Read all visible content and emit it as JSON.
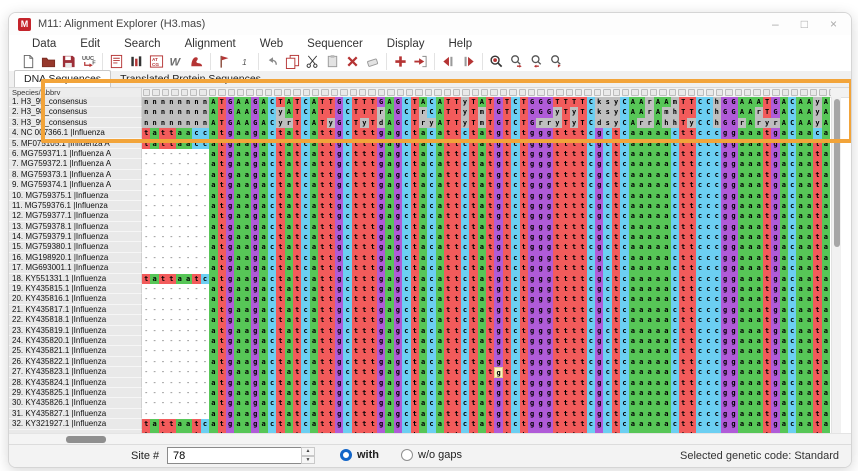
{
  "window": {
    "title": "M11: Alignment Explorer (H3.mas)",
    "logo_letter": "M",
    "controls": {
      "minimize": "–",
      "maximize": "□",
      "close": "×"
    }
  },
  "menu": {
    "items": [
      "Data",
      "Edit",
      "Search",
      "Alignment",
      "Web",
      "Sequencer",
      "Display",
      "Help"
    ]
  },
  "toolbar": {
    "groups": [
      [
        "new-file",
        "open-folder",
        "save-file",
        "translate-uuc"
      ],
      [
        "find-motif",
        "trace-data",
        "toggle-atcg",
        "clustalw-align",
        "muscle-align"
      ],
      [
        "mark-site-flag",
        "site-number"
      ],
      [
        "undo",
        "copy",
        "cut",
        "paste",
        "delete",
        "eraser"
      ],
      [
        "add-sequence",
        "insert-sequence"
      ],
      [
        "move-left",
        "move-right"
      ],
      [
        "search-zoom",
        "search-next",
        "search-previous",
        "search-mark"
      ]
    ]
  },
  "tabs": [
    {
      "label": "DNA Sequences",
      "active": true
    },
    {
      "label": "Translated Protein Sequences",
      "active": false
    }
  ],
  "alignment": {
    "header_label": "Species/Abbrv",
    "columns": 82,
    "nuc_colors": {
      "a": "#57C657",
      "t": "#F25B5B",
      "g": "#B05BD8",
      "c": "#6CCFF2",
      "ambiguous": "#BFBFBF"
    },
    "cursor": {
      "row": 27,
      "col": 43
    },
    "rows": [
      {
        "label": "1. H3_95_consensus",
        "seq": "nnnnnnnnATGAAGACTATCATTGCTTTGAGCTACATTyTATGTCTGGGTTTTCksyCAArAAmTTCChGGAAATGACAAyA"
      },
      {
        "label": "2. H3_98_consensus",
        "seq": "nnnnnnnnATGAAGACyATCATTGCTTTrAGCTrCATTyTmTGTCTGGGyTyTCksyCAArAmhTTCChGGAArTGACAAyA"
      },
      {
        "label": "3. H3_99_consensus",
        "seq": "nnnnnnnnATGAAGACyrTCATyGCTyTdAGCTryATTyTmTGTCTGrryTyTCdsyCArrAhhTyCChGGrAryrACAAyA"
      },
      {
        "label": "4. NC 007366.1 |Influenza",
        "seq": "tattaaccatgaagactatcattgctttgagctacattctatgtctgggttttcgctcaaaaacttcccggaaatgacaaca"
      },
      {
        "label": "5. MF075105.1 |Influenza A",
        "seq": "tattaaccatgaagactatcattgctttgagctacattctatgtctgggttttcgctcaaaaacttcccggaaatgacaata"
      },
      {
        "label": "6. MG759371.1 |Influenza A",
        "seq": "--------atgaagactatcattgctttgagctacattctatgtctgggttttcgctcaaaaacttcccggaaatgacaata"
      },
      {
        "label": "7. MG759372.1 |Influenza A",
        "seq": "--------atgaagactatcattgctttgagctacattctatgtctgggttttcgctcaaaaacttcccggaaatgacaata"
      },
      {
        "label": "8. MG759373.1 |Influenza A",
        "seq": "--------atgaagactatcattgctttgagctacattctatgtctgggttttcgctcaaaaacttcccggaaatgacaata"
      },
      {
        "label": "9. MG759374.1 |Influenza A",
        "seq": "--------atgaagactatcattgctttgagctacattctatgtctgggttttcgctcaaaaacttcccggaaatgacaata"
      },
      {
        "label": "10. MG759375.1 |Influenza",
        "seq": "--------atgaagactatcattgctttgagctacattctatgtctgggttttcgctcaaaaacttcccggaaatgacaata"
      },
      {
        "label": "11. MG759376.1 |Influenza",
        "seq": "--------atgaagactatcattgctttgagctacattctatgtctgggttttcgctcaaaaacttcccggaaatgacaata"
      },
      {
        "label": "12. MG759377.1 |Influenza",
        "seq": "--------atgaagactatcattgctttgagctacattctatgtctgggttttcgctcaaaaacttcccggaaatgacaata"
      },
      {
        "label": "13. MG759378.1 |Influenza",
        "seq": "--------atgaagactatcattgctttgagctacattctatgtctgggttttcgctcaaaaacttcccggaaatgacaata"
      },
      {
        "label": "14. MG759379.1 |Influenza",
        "seq": "--------atgaagactatcattgctttgagctacattctatgtctgggttttcgctcaaaaacttcccggaaatgacaata"
      },
      {
        "label": "15. MG759380.1 |Influenza",
        "seq": "--------atgaagactatcattgctttgagctacattctatgtctgggttttcgctcaaaaacttcccggaaatgacaata"
      },
      {
        "label": "16. MG198920.1 |Influenza",
        "seq": "--------atgaagactatcattgctttgagctacattctatgtctgggttttcgctcaaaaacttcccggaaatgacaata"
      },
      {
        "label": "17. MG693001.1 |Influenza",
        "seq": "--------atgaagactatcattgctttgagctacattctatgtctgggttttcgctcaaaaacttcccggaaatgacaata"
      },
      {
        "label": "18. KY551331.1 |Influenza",
        "seq": "tattaatcatgaagactatcattgctttgagctacattctatgtctgggttttcgctcaaaaacttcccggaaatgacaata"
      },
      {
        "label": "19. KY435815.1 |Influenza",
        "seq": "--------atgaagactatcattgctttgagctacattctatgtctgggttttcgctcaaaaacttcccggaaatgacaata"
      },
      {
        "label": "20. KY435816.1 |Influenza",
        "seq": "--------atgaagactatcattgctttgagctacattctatgtctgggttttcgctcaaaaacttcccggaaatgacaata"
      },
      {
        "label": "21. KY435817.1 |Influenza",
        "seq": "--------atgaagactatcattgctttgagctacattctatgtctgggttttcgctcaaaaacttcccggaaatgacaata"
      },
      {
        "label": "22. KY435818.1 |Influenza",
        "seq": "--------atgaagactatcattgctttgagctacattctatgtctgggttttcgctcaaaaacttcccggaaatgacaata"
      },
      {
        "label": "23. KY435819.1 |Influenza",
        "seq": "--------atgaagactatcattgctttgagctacattctatgtctgggttttcgctcaaaaacttcccggaaatgacaata"
      },
      {
        "label": "24. KY435820.1 |Influenza",
        "seq": "--------atgaagactatcattgctttgagctacattctatgtctgggttttcgctcaaaaacttcccggaaatgacaata"
      },
      {
        "label": "25. KY435821.1 |Influenza",
        "seq": "--------atgaagactatcattgctttgagctacattctatgtctgggttttcgctcaaaaacttcccggaaatgacaata"
      },
      {
        "label": "26. KY435822.1 |Influenza",
        "seq": "--------atgaagactatcattgctttgagctacattctatgtctgggttttcgctcaaaaacttcccggaaatgacaata"
      },
      {
        "label": "27. KY435823.1 |Influenza",
        "seq": "--------atgaagactatcattgctttgagctacattctatgtctgggttttcgctcaaaaacttcccggaaatgacaata"
      },
      {
        "label": "28. KY435824.1 |Influenza",
        "seq": "--------atgaagactatcattgctttgagctacattctatgtctgggttttcgctcaaaaacttcccggaaatgacaata"
      },
      {
        "label": "29. KY435825.1 |Influenza",
        "seq": "--------atgaagactatcattgctttgagctacattctatgtctgggttttcgctcaaaaacttcccggaaatgacaata"
      },
      {
        "label": "30. KY435826.1 |Influenza",
        "seq": "--------atgaagactatcattgctttgagctacattctatgtctgggttttcgctcaaaaacttcccggaaatgacaata"
      },
      {
        "label": "31. KY435827.1 |Influenza",
        "seq": "--------atgaagactatcattgctttgagctacattctatgtctgggttttcgctcaaaaacttcccggaaatgacaata"
      },
      {
        "label": "32. KY321927.1 |Influenza",
        "seq": "tattaatcatgaagactatcattgctttgagctacattctatgtctgggttttcgctcaaaaacttcccggaaatgacaata"
      },
      {
        "label": "",
        "seq": "tattaatcatgaagactatcattgctttgagctacattctatgtctgggttttcgctcaaaaacttcccggaaatgacaata",
        "partial": true
      }
    ]
  },
  "statusbar": {
    "site_label": "Site #",
    "site_value": "78",
    "with_label": "with",
    "wo_label": "w/o gaps",
    "genetic_code": "Selected genetic code: Standard"
  },
  "annotation": {
    "border_color": "#f2a43a"
  }
}
